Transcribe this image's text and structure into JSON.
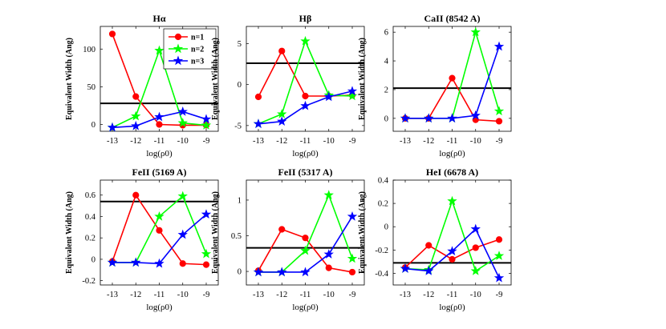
{
  "chart_data": [
    {
      "type": "line",
      "title": "Hα",
      "xlabel": "log(ρ0)",
      "ylabel": "Equivalent Width (Ang)",
      "x": [
        -13,
        -12,
        -11,
        -10,
        -9
      ],
      "xticks": [
        "-13",
        "-12",
        "-11",
        "-10",
        "-9"
      ],
      "ylim": [
        -9,
        130
      ],
      "yticks": [
        0,
        50,
        100
      ],
      "ytick_labels": [
        "0",
        "50",
        "100"
      ],
      "reference_line": 28,
      "legend": {
        "position": "top-right",
        "entries": [
          "n=1",
          "n=2",
          "n=3"
        ]
      },
      "series": [
        {
          "name": "n=1",
          "color": "#ff0000",
          "marker": "circle",
          "values": [
            120,
            37,
            0,
            -1,
            -1
          ]
        },
        {
          "name": "n=2",
          "color": "#00ff00",
          "marker": "star",
          "values": [
            -4,
            11,
            98,
            2,
            -1
          ]
        },
        {
          "name": "n=3",
          "color": "#0000ff",
          "marker": "star",
          "values": [
            -4,
            -2,
            10,
            17,
            7
          ]
        }
      ]
    },
    {
      "type": "line",
      "title": "Hβ",
      "xlabel": "log(ρ0)",
      "ylabel": "Equivalent Width (Ang)",
      "x": [
        -13,
        -12,
        -11,
        -10,
        -9
      ],
      "xticks": [
        "-13",
        "-12",
        "-11",
        "-10",
        "-9"
      ],
      "ylim": [
        -5.7,
        7.1
      ],
      "yticks": [
        -5,
        0,
        5
      ],
      "ytick_labels": [
        "-5",
        "0",
        "5"
      ],
      "reference_line": 2.6,
      "series": [
        {
          "name": "n=1",
          "color": "#ff0000",
          "marker": "circle",
          "values": [
            -1.5,
            4.1,
            -1.4,
            -1.4,
            -1.3
          ]
        },
        {
          "name": "n=2",
          "color": "#00ff00",
          "marker": "star",
          "values": [
            -4.8,
            -3.6,
            5.3,
            -1.3,
            -1.4
          ]
        },
        {
          "name": "n=3",
          "color": "#0000ff",
          "marker": "star",
          "values": [
            -4.8,
            -4.5,
            -2.6,
            -1.5,
            -0.8
          ]
        }
      ]
    },
    {
      "type": "line",
      "title": "CaII (8542 A)",
      "xlabel": "log(ρ0)",
      "ylabel": "Equivalent Width (Ang)",
      "x": [
        -13,
        -12,
        -11,
        -10,
        -9
      ],
      "xticks": [
        "-13",
        "-12",
        "-11",
        "-10",
        "-9"
      ],
      "ylim": [
        -0.9,
        6.4
      ],
      "yticks": [
        0,
        2,
        4,
        6
      ],
      "ytick_labels": [
        "0",
        "2",
        "4",
        "6"
      ],
      "reference_line": 2.1,
      "series": [
        {
          "name": "n=1",
          "color": "#ff0000",
          "marker": "circle",
          "values": [
            0,
            0,
            2.8,
            -0.1,
            -0.2
          ]
        },
        {
          "name": "n=2",
          "color": "#00ff00",
          "marker": "star",
          "values": [
            0,
            0,
            0,
            6.0,
            0.5
          ]
        },
        {
          "name": "n=3",
          "color": "#0000ff",
          "marker": "star",
          "values": [
            0,
            0,
            0,
            0.2,
            5.0
          ]
        }
      ]
    },
    {
      "type": "line",
      "title": "FeII (5169 A)",
      "xlabel": "log(ρ0)",
      "ylabel": "Equivalent Width (Ang)",
      "x": [
        -13,
        -12,
        -11,
        -10,
        -9
      ],
      "xticks": [
        "-13",
        "-12",
        "-11",
        "-10",
        "-9"
      ],
      "ylim": [
        -0.24,
        0.74
      ],
      "yticks": [
        -0.2,
        0,
        0.2,
        0.4,
        0.6
      ],
      "ytick_labels": [
        "-0.2",
        "0",
        "0.2",
        "0.4",
        "0.6"
      ],
      "reference_line": 0.54,
      "series": [
        {
          "name": "n=1",
          "color": "#ff0000",
          "marker": "circle",
          "values": [
            -0.02,
            0.6,
            0.27,
            -0.04,
            -0.05
          ]
        },
        {
          "name": "n=2",
          "color": "#00ff00",
          "marker": "star",
          "values": [
            -0.03,
            -0.03,
            0.4,
            0.59,
            0.05
          ]
        },
        {
          "name": "n=3",
          "color": "#0000ff",
          "marker": "star",
          "values": [
            -0.03,
            -0.03,
            -0.04,
            0.23,
            0.42
          ]
        }
      ]
    },
    {
      "type": "line",
      "title": "FeII (5317 A)",
      "xlabel": "log(ρ0)",
      "ylabel": "Equivalent Width (Ang)",
      "x": [
        -13,
        -12,
        -11,
        -10,
        -9
      ],
      "xticks": [
        "-13",
        "-12",
        "-11",
        "-10",
        "-9"
      ],
      "ylim": [
        -0.19,
        1.28
      ],
      "yticks": [
        0,
        0.5,
        1
      ],
      "ytick_labels": [
        "0",
        "0.5",
        "1"
      ],
      "reference_line": 0.33,
      "series": [
        {
          "name": "n=1",
          "color": "#ff0000",
          "marker": "circle",
          "values": [
            0.01,
            0.59,
            0.47,
            0.05,
            -0.01
          ]
        },
        {
          "name": "n=2",
          "color": "#00ff00",
          "marker": "star",
          "values": [
            -0.01,
            -0.01,
            0.29,
            1.07,
            0.18
          ]
        },
        {
          "name": "n=3",
          "color": "#0000ff",
          "marker": "star",
          "values": [
            -0.01,
            -0.01,
            -0.01,
            0.24,
            0.77
          ]
        }
      ]
    },
    {
      "type": "line",
      "title": "HeI (6678 A)",
      "xlabel": "log(ρ0)",
      "ylabel": "Equivalent Width (Ang)",
      "x": [
        -13,
        -12,
        -11,
        -10,
        -9
      ],
      "xticks": [
        "-13",
        "-12",
        "-11",
        "-10",
        "-9"
      ],
      "ylim": [
        -0.5,
        0.4
      ],
      "yticks": [
        -0.4,
        -0.2,
        0,
        0.2,
        0.4
      ],
      "ytick_labels": [
        "-0.4",
        "-0.2",
        "0",
        "0.2",
        "0.4"
      ],
      "reference_line": -0.31,
      "series": [
        {
          "name": "n=1",
          "color": "#ff0000",
          "marker": "circle",
          "values": [
            -0.35,
            -0.16,
            -0.28,
            -0.18,
            -0.11
          ]
        },
        {
          "name": "n=2",
          "color": "#00ff00",
          "marker": "star",
          "values": [
            -0.36,
            -0.37,
            0.22,
            -0.38,
            -0.25
          ]
        },
        {
          "name": "n=3",
          "color": "#0000ff",
          "marker": "star",
          "values": [
            -0.36,
            -0.38,
            -0.21,
            -0.02,
            -0.44
          ]
        }
      ]
    }
  ]
}
